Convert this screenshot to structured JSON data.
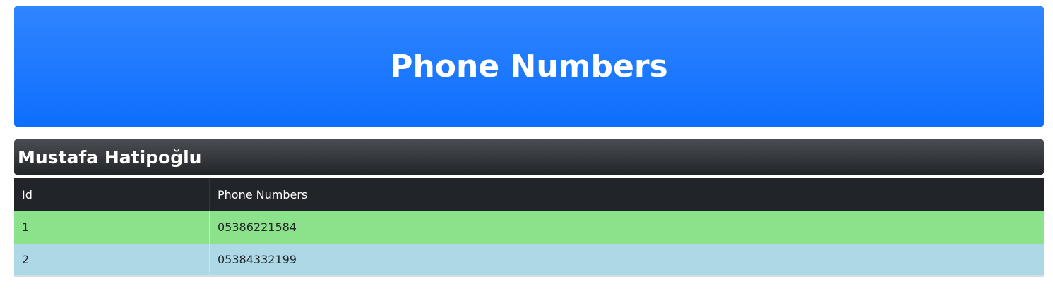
{
  "header": {
    "title": "Phone Numbers"
  },
  "person": {
    "name": "Mustafa Hatipoğlu"
  },
  "table": {
    "columns": [
      "Id",
      "Phone Numbers"
    ],
    "rows": [
      {
        "id": "1",
        "phone": "05386221584",
        "color": "#8be28b"
      },
      {
        "id": "2",
        "phone": "05384332199",
        "color": "#add8e6"
      }
    ]
  },
  "colors": {
    "header": "#0d6efd",
    "dark": "#212529"
  }
}
